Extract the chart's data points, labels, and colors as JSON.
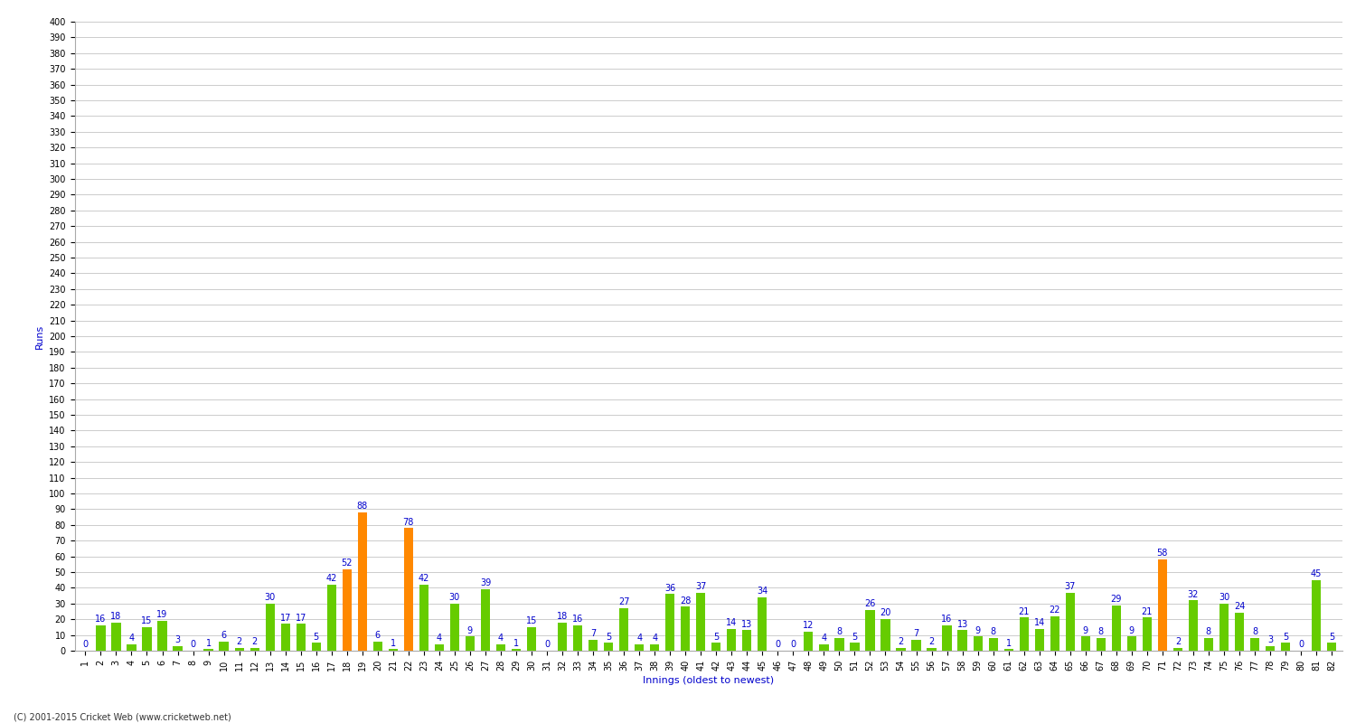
{
  "xlabel": "Innings (oldest to newest)",
  "ylabel": "Runs",
  "scores": [
    0,
    16,
    18,
    4,
    15,
    19,
    3,
    0,
    1,
    6,
    2,
    2,
    30,
    17,
    17,
    5,
    42,
    52,
    88,
    6,
    1,
    78,
    42,
    4,
    30,
    9,
    39,
    4,
    1,
    15,
    0,
    18,
    16,
    7,
    5,
    27,
    4,
    4,
    36,
    28,
    37,
    5,
    14,
    13,
    34,
    0,
    0,
    12,
    4,
    8,
    5,
    26,
    20,
    2,
    7,
    2,
    16,
    13,
    9,
    8,
    1,
    21,
    14,
    22,
    37,
    9,
    8,
    29,
    9,
    21,
    58,
    2,
    32,
    8,
    30,
    24,
    8,
    3,
    5,
    0,
    45,
    5
  ],
  "innings_labels": [
    "1",
    "2",
    "3",
    "4",
    "5",
    "6",
    "7",
    "8",
    "9",
    "10",
    "11",
    "12",
    "13",
    "14",
    "15",
    "16",
    "17",
    "18",
    "19",
    "20",
    "21",
    "22",
    "23",
    "24",
    "25",
    "26",
    "27",
    "28",
    "29",
    "30",
    "31",
    "32",
    "33",
    "34",
    "35",
    "36",
    "37",
    "38",
    "39",
    "40",
    "41",
    "42",
    "43",
    "44",
    "45",
    "46",
    "47",
    "48",
    "49",
    "50",
    "51",
    "52",
    "53",
    "54",
    "55",
    "56",
    "57",
    "58",
    "59",
    "60",
    "61",
    "62",
    "63",
    "64",
    "65",
    "66",
    "67",
    "68",
    "69",
    "70",
    "71",
    "72",
    "73",
    "74",
    "75",
    "76",
    "77",
    "78",
    "79",
    "80",
    "81",
    "82"
  ],
  "fifty_threshold": 50,
  "green_color": "#66cc00",
  "orange_color": "#ff8800",
  "text_color": "#0000cc",
  "bg_color": "#ffffff",
  "grid_color": "#cccccc",
  "ylim": [
    0,
    400
  ],
  "ytick_step": 10,
  "bar_width": 0.6,
  "label_fontsize": 8,
  "tick_fontsize": 7,
  "value_fontsize": 7,
  "footer_text": "(C) 2001-2015 Cricket Web (www.cricketweb.net)"
}
